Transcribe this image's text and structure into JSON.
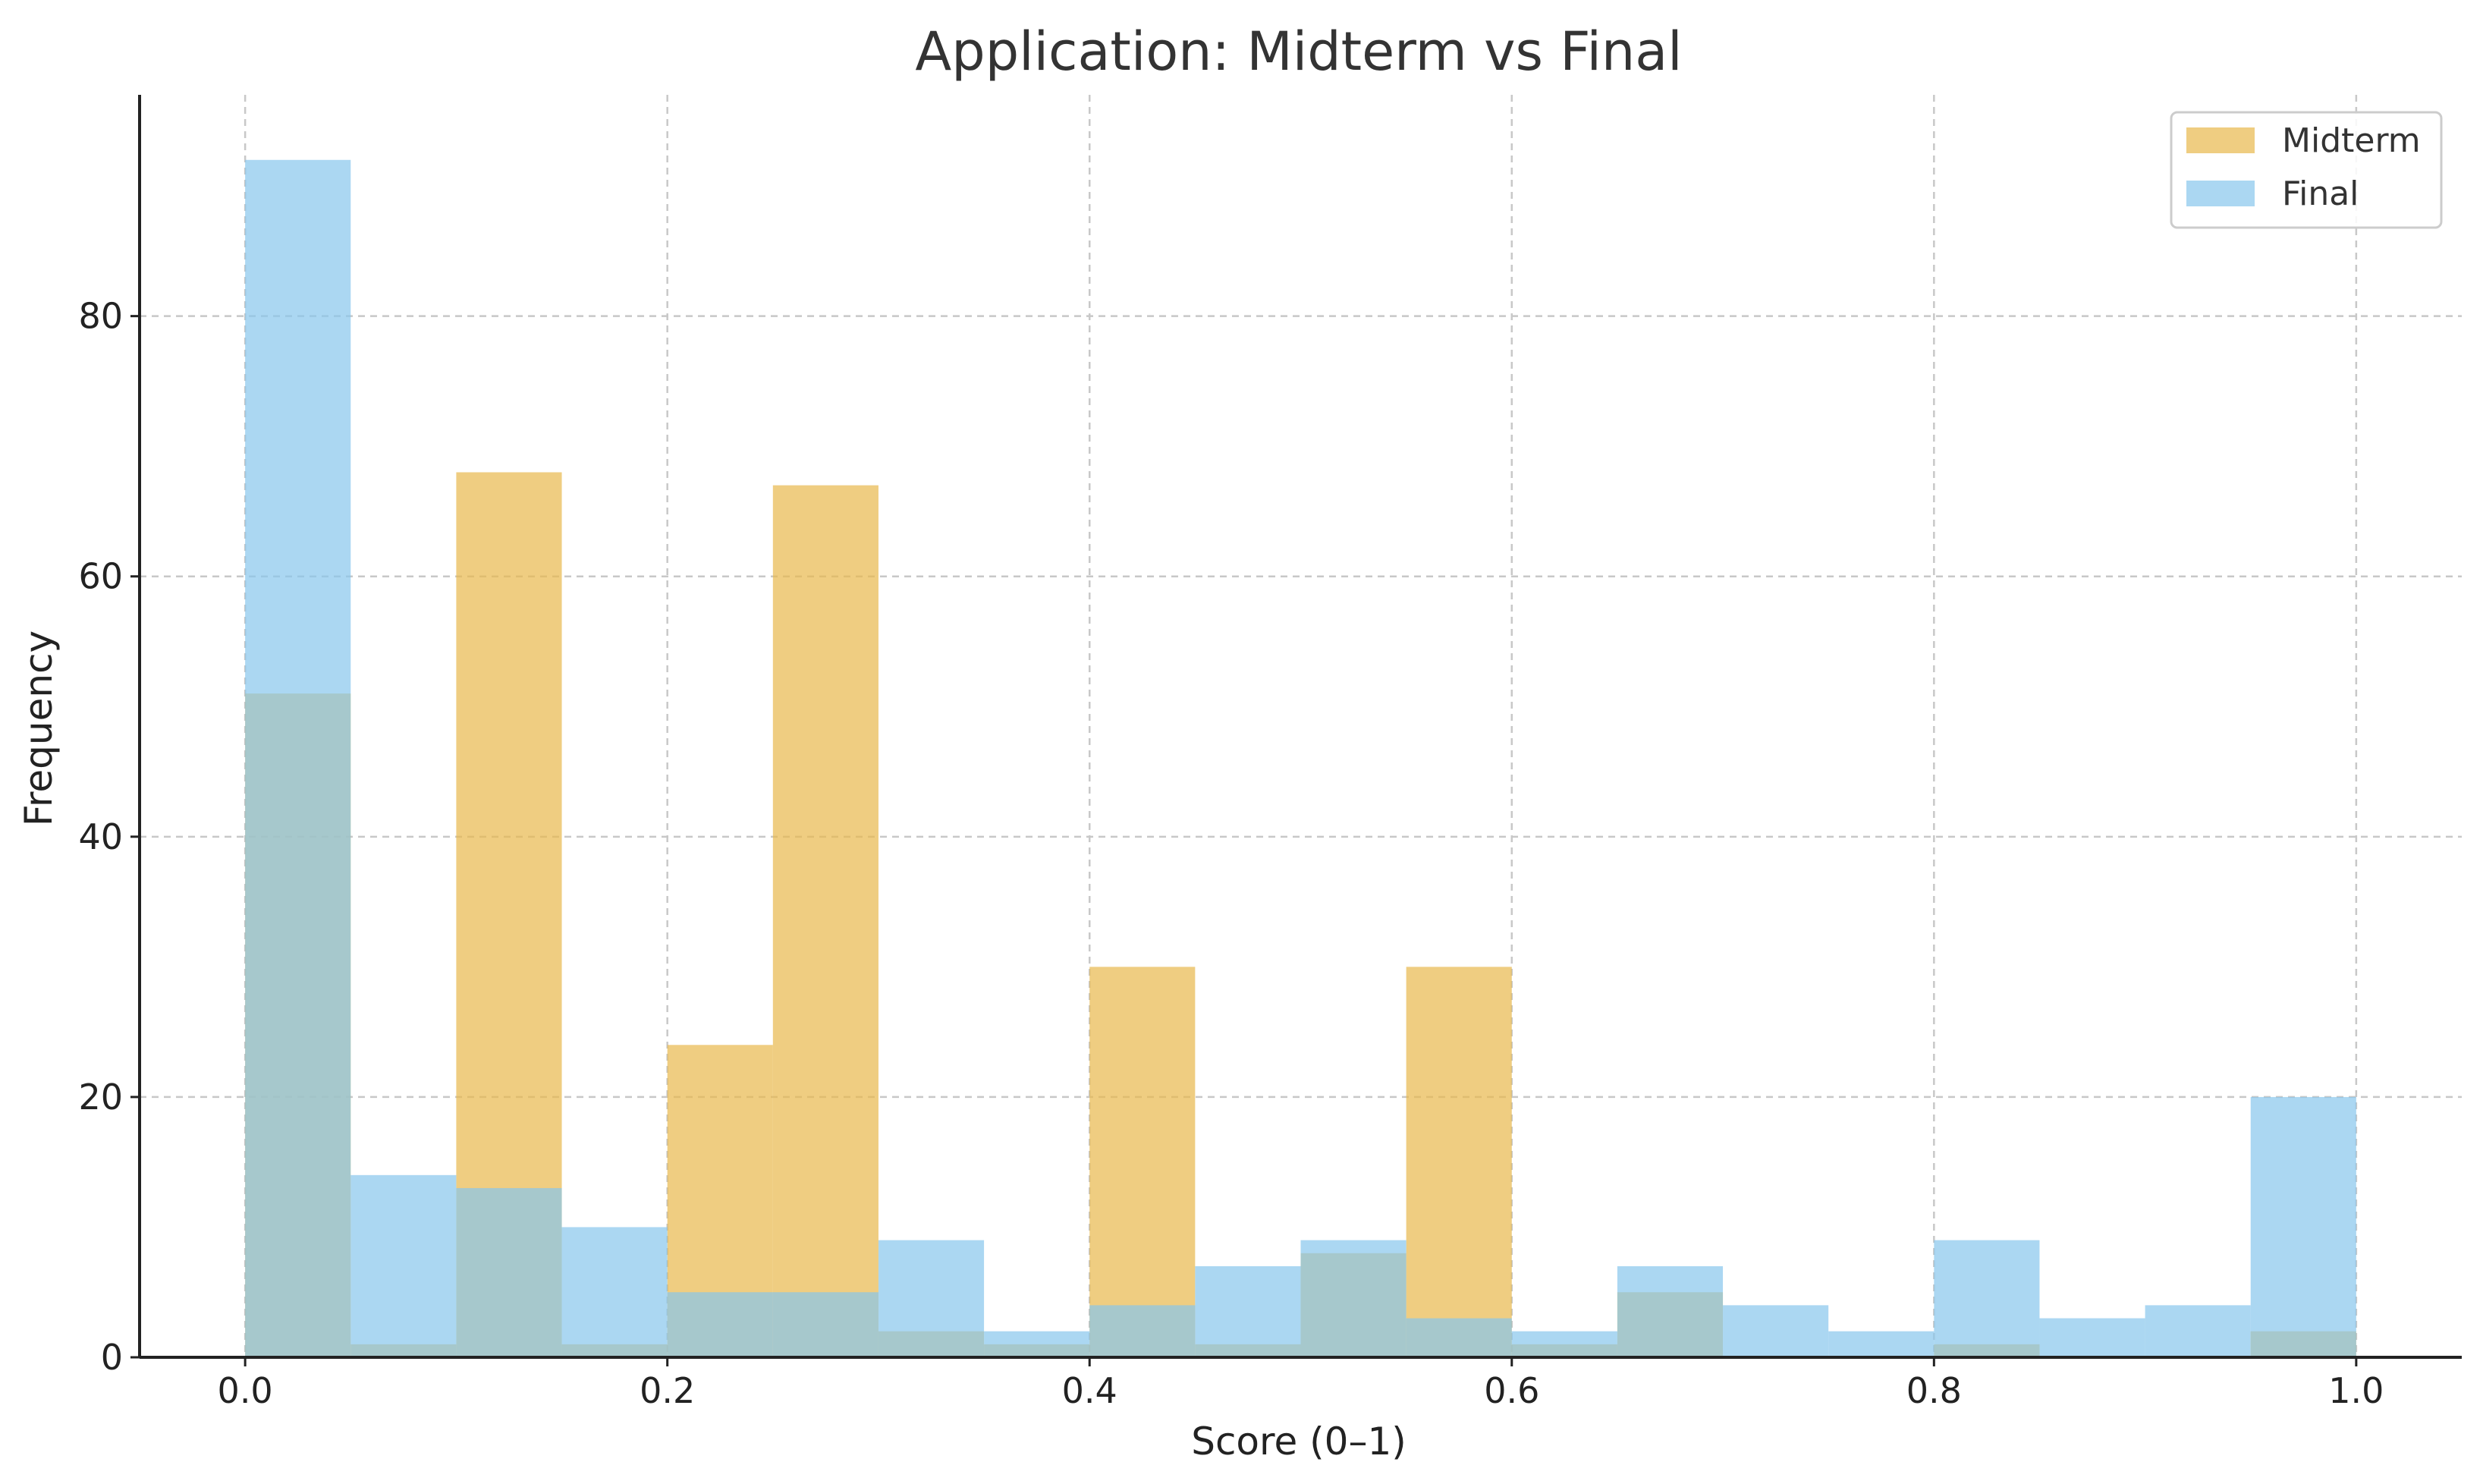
{
  "chart_data": {
    "type": "bar",
    "title": "Application: Midterm vs Final",
    "xlabel": "Score (0–1)",
    "ylabel": "Frequency",
    "xlim": [
      -0.05,
      1.05
    ],
    "ylim": [
      0,
      97
    ],
    "xticks": [
      "0.0",
      "0.2",
      "0.4",
      "0.6",
      "0.8",
      "1.0"
    ],
    "xtick_values": [
      0.0,
      0.2,
      0.4,
      0.6,
      0.8,
      1.0
    ],
    "yticks": [
      "0",
      "20",
      "40",
      "60",
      "80"
    ],
    "ytick_values": [
      0,
      20,
      40,
      60,
      80
    ],
    "grid": true,
    "legend_position": "top-right",
    "bin_edges": [
      0.0,
      0.05,
      0.1,
      0.15,
      0.2,
      0.25,
      0.3,
      0.35,
      0.4,
      0.45,
      0.5,
      0.55,
      0.6,
      0.65,
      0.7,
      0.75,
      0.8,
      0.85,
      0.9,
      0.95,
      1.0
    ],
    "series": [
      {
        "name": "Midterm",
        "color": "#e8b84b",
        "opacity": 0.7,
        "values": [
          51,
          1,
          68,
          1,
          24,
          67,
          2,
          1,
          30,
          1,
          8,
          30,
          1,
          5,
          0,
          0,
          1,
          0,
          0,
          2
        ]
      },
      {
        "name": "Final",
        "color": "#87c6ec",
        "opacity": 0.7,
        "values": [
          92,
          14,
          13,
          10,
          5,
          5,
          9,
          2,
          4,
          7,
          9,
          3,
          2,
          7,
          4,
          2,
          9,
          3,
          4,
          20
        ]
      }
    ]
  }
}
